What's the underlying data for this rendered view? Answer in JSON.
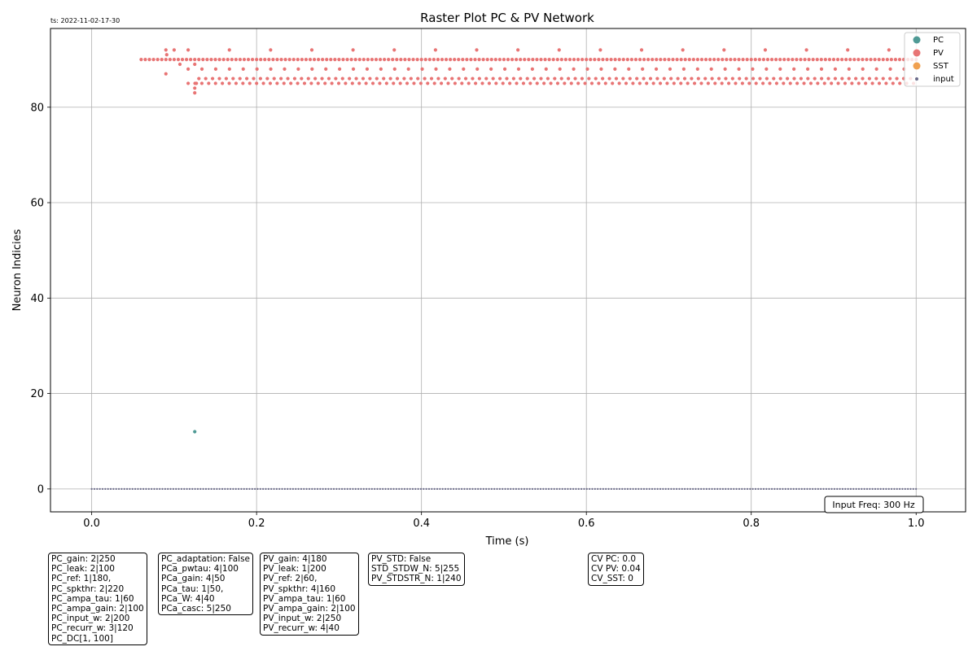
{
  "timestamp": "ts: 2022-11-02-17-30",
  "chart_data": {
    "type": "scatter",
    "title": "Raster Plot PC & PV Network",
    "xlabel": "Time (s)",
    "ylabel": "Neuron Indicies",
    "xlim": [
      -0.05,
      1.06
    ],
    "ylim": [
      -4.8,
      96.5
    ],
    "xticks": [
      "0.0",
      "0.2",
      "0.4",
      "0.6",
      "0.8",
      "1.0"
    ],
    "xtick_values": [
      0.0,
      0.2,
      0.4,
      0.6,
      0.8,
      1.0
    ],
    "yticks": [
      "0",
      "20",
      "40",
      "60",
      "80"
    ],
    "ytick_values": [
      0,
      20,
      40,
      60,
      80
    ],
    "grid": true,
    "legend_position": "top-right",
    "series": [
      {
        "name": "PC",
        "color": "#4f9a95",
        "points": [
          [
            0.125,
            12
          ]
        ]
      },
      {
        "name": "PV",
        "color": "#e87474",
        "rows": [
          {
            "y": 90,
            "x_start": 0.06,
            "x_end": 1.0,
            "step": 0.005
          },
          {
            "y": 92,
            "x_start": 0.117,
            "x_end": 1.0,
            "step": 0.05
          },
          {
            "y": 88,
            "x_start": 0.117,
            "x_end": 1.0,
            "step": 0.0167
          },
          {
            "y": 86,
            "x_start": 0.13,
            "x_end": 1.0,
            "step": 0.0083
          },
          {
            "y": 85,
            "x_start": 0.117,
            "x_end": 1.0,
            "step": 0.0083
          }
        ],
        "extra_points": [
          [
            0.09,
            92
          ],
          [
            0.091,
            91
          ],
          [
            0.09,
            87
          ],
          [
            0.1,
            92
          ],
          [
            0.107,
            89
          ],
          [
            0.125,
            89
          ],
          [
            0.125,
            84
          ],
          [
            0.125,
            83
          ],
          [
            0.127,
            85
          ]
        ]
      },
      {
        "name": "SST",
        "color": "#f0a050",
        "points": []
      },
      {
        "name": "input",
        "color": "#6b6b8a",
        "rows": [
          {
            "y": 0,
            "x_start": 0.0,
            "x_end": 1.0,
            "step": 0.0033
          }
        ]
      }
    ],
    "annotation": "Input Freq: 300 Hz"
  },
  "params": [
    {
      "lines": [
        "PC_gain: 2|250",
        "PC_leak: 2|100",
        "PC_ref: 1|180,",
        "PC_spkthr: 2|220",
        "PC_ampa_tau: 1|60",
        "PC_ampa_gain: 2|100",
        "PC_input_w: 2|200",
        "PC_recurr_w: 3|120",
        "PC_DC[1, 100]"
      ]
    },
    {
      "lines": [
        "PC_adaptation: False",
        "PCa_pwtau: 4|100",
        "PCa_gain: 4|50",
        "PCa_tau: 1|50,",
        "PCa_W: 4|40",
        "PCa_casc: 5|250"
      ]
    },
    {
      "lines": [
        "PV_gain: 4|180",
        "PV_leak: 1|200",
        "PV_ref: 2|60,",
        "PV_spkthr: 4|160",
        "PV_ampa_tau: 1|60",
        "PV_ampa_gain: 2|100",
        "PV_input_w: 2|250",
        "PV_recurr_w: 4|40"
      ]
    },
    {
      "lines": [
        "PV_STD: False",
        "STD_STDW_N: 5|255",
        "PV_STDSTR_N: 1|240"
      ]
    },
    {
      "lines": [
        "CV PC: 0.0",
        "CV PV: 0.04",
        "CV_SST: 0"
      ]
    }
  ]
}
